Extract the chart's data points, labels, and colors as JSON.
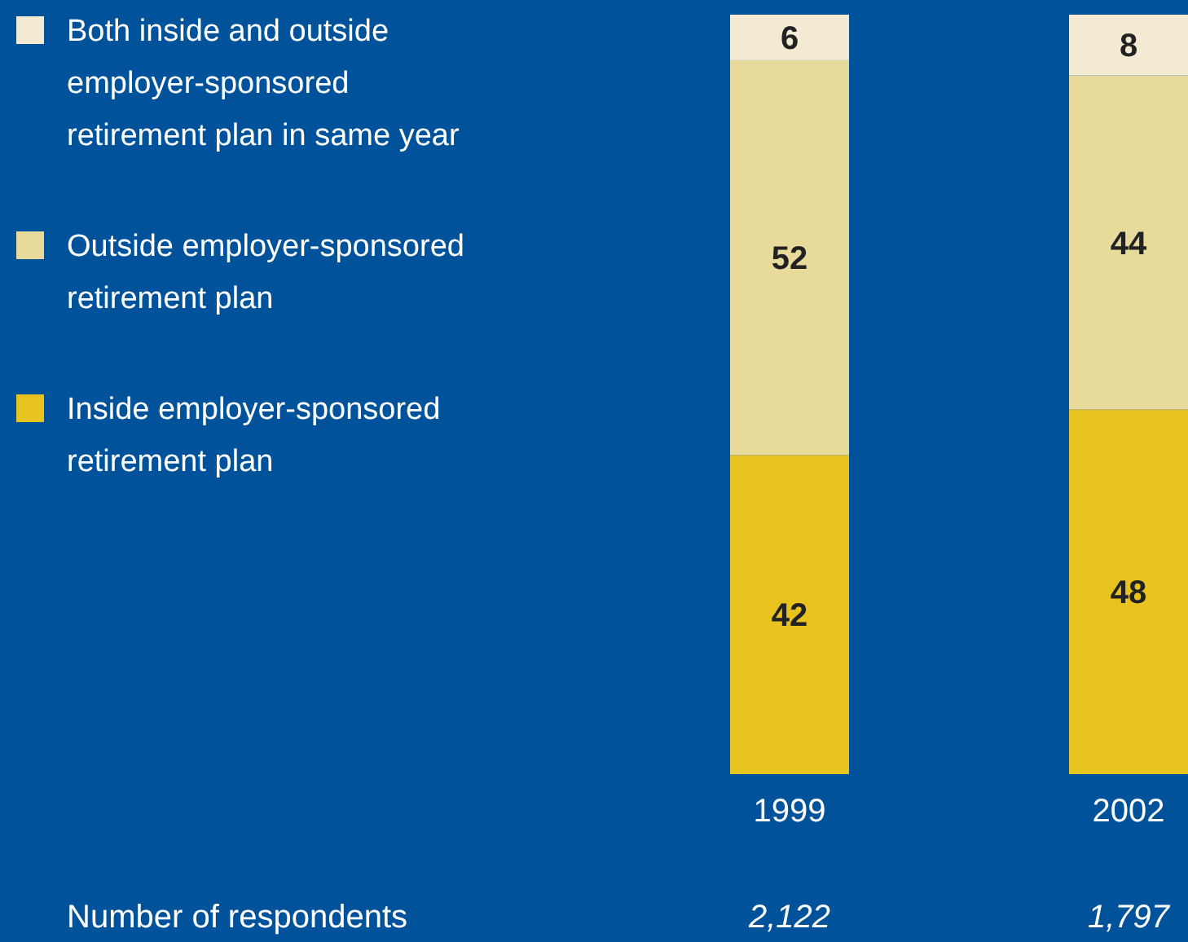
{
  "chart_data": {
    "type": "bar",
    "stacked": true,
    "categories": [
      "1999",
      "2002"
    ],
    "series": [
      {
        "name": "Inside employer-sponsored retirement plan",
        "color": "#e8c21f",
        "values": [
          42,
          48
        ]
      },
      {
        "name": "Outside employer-sponsored retirement plan",
        "color": "#e8da9a",
        "values": [
          52,
          44
        ]
      },
      {
        "name": "Both inside and outside employer-sponsored retirement plan in same year",
        "color": "#f2ead2",
        "values": [
          6,
          8
        ]
      }
    ],
    "ylim": [
      0,
      100
    ],
    "data_labels": true,
    "legend": "top left",
    "tick_labels": "x",
    "annotations": [
      "Number of respondents",
      "2,122",
      "1,797"
    ]
  }
}
